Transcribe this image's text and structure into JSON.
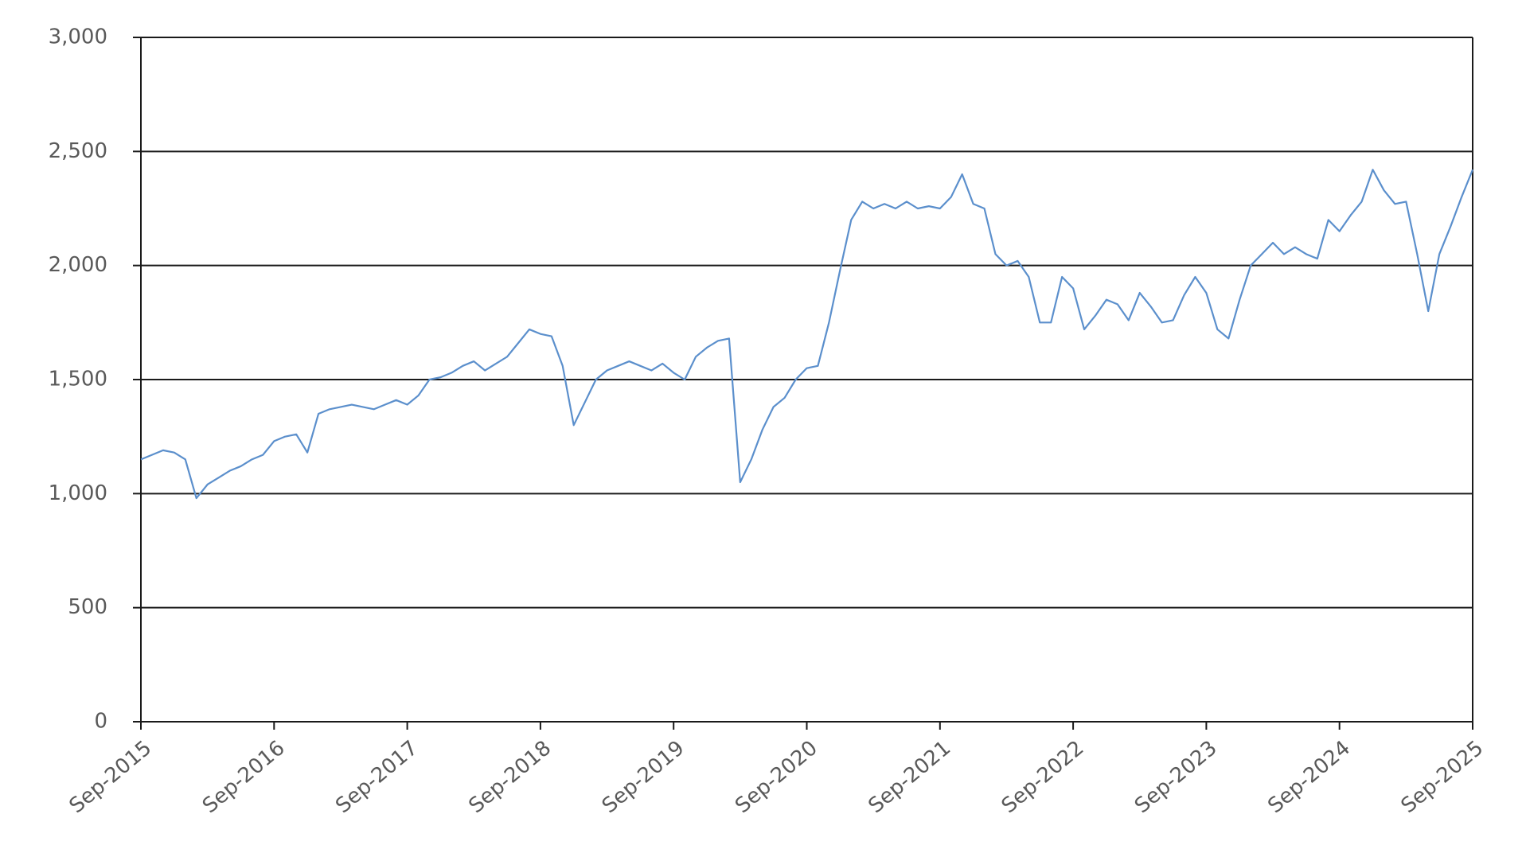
{
  "chart_data": {
    "type": "line",
    "x": [
      "2015-09",
      "2015-10",
      "2015-11",
      "2015-12",
      "2016-01",
      "2016-02",
      "2016-03",
      "2016-04",
      "2016-05",
      "2016-06",
      "2016-07",
      "2016-08",
      "2016-09",
      "2016-10",
      "2016-11",
      "2016-12",
      "2017-01",
      "2017-02",
      "2017-03",
      "2017-04",
      "2017-05",
      "2017-06",
      "2017-07",
      "2017-08",
      "2017-09",
      "2017-10",
      "2017-11",
      "2017-12",
      "2018-01",
      "2018-02",
      "2018-03",
      "2018-04",
      "2018-05",
      "2018-06",
      "2018-07",
      "2018-08",
      "2018-09",
      "2018-10",
      "2018-11",
      "2018-12",
      "2019-01",
      "2019-02",
      "2019-03",
      "2019-04",
      "2019-05",
      "2019-06",
      "2019-07",
      "2019-08",
      "2019-09",
      "2019-10",
      "2019-11",
      "2019-12",
      "2020-01",
      "2020-02",
      "2020-03",
      "2020-04",
      "2020-05",
      "2020-06",
      "2020-07",
      "2020-08",
      "2020-09",
      "2020-10",
      "2020-11",
      "2020-12",
      "2021-01",
      "2021-02",
      "2021-03",
      "2021-04",
      "2021-05",
      "2021-06",
      "2021-07",
      "2021-08",
      "2021-09",
      "2021-10",
      "2021-11",
      "2021-12",
      "2022-01",
      "2022-02",
      "2022-03",
      "2022-04",
      "2022-05",
      "2022-06",
      "2022-07",
      "2022-08",
      "2022-09",
      "2022-10",
      "2022-11",
      "2022-12",
      "2023-01",
      "2023-02",
      "2023-03",
      "2023-04",
      "2023-05",
      "2023-06",
      "2023-07",
      "2023-08",
      "2023-09",
      "2023-10",
      "2023-11",
      "2023-12",
      "2024-01",
      "2024-02",
      "2024-03",
      "2024-04",
      "2024-05",
      "2024-06",
      "2024-07",
      "2024-08",
      "2024-09",
      "2024-10",
      "2024-11",
      "2024-12",
      "2025-01",
      "2025-02",
      "2025-03",
      "2025-04",
      "2025-05",
      "2025-06",
      "2025-07",
      "2025-08",
      "2025-09"
    ],
    "series": [
      {
        "color": "#5b8fcc",
        "values": [
          1150,
          1170,
          1190,
          1180,
          1150,
          980,
          1040,
          1070,
          1100,
          1120,
          1150,
          1170,
          1230,
          1250,
          1260,
          1180,
          1350,
          1370,
          1380,
          1390,
          1380,
          1370,
          1390,
          1410,
          1390,
          1430,
          1500,
          1510,
          1530,
          1560,
          1580,
          1540,
          1570,
          1600,
          1660,
          1720,
          1700,
          1690,
          1560,
          1300,
          1400,
          1500,
          1540,
          1560,
          1580,
          1560,
          1540,
          1570,
          1530,
          1500,
          1600,
          1640,
          1670,
          1680,
          1050,
          1150,
          1280,
          1380,
          1420,
          1500,
          1550,
          1560,
          1750,
          1980,
          2200,
          2280,
          2250,
          2270,
          2250,
          2280,
          2250,
          2260,
          2250,
          2300,
          2400,
          2270,
          2250,
          2050,
          2000,
          2020,
          1950,
          1750,
          1750,
          1950,
          1900,
          1720,
          1780,
          1850,
          1830,
          1760,
          1880,
          1820,
          1750,
          1760,
          1870,
          1950,
          1880,
          1720,
          1680,
          1850,
          2000,
          2050,
          2100,
          2050,
          2080,
          2050,
          2030,
          2200,
          2150,
          2220,
          2280,
          2420,
          2330,
          2270,
          2280,
          2050,
          1800,
          2050,
          2170,
          2300,
          2420
        ]
      }
    ],
    "xlim": [
      "2015-09",
      "2025-09"
    ],
    "xticks": [
      {
        "value": "2015-09",
        "label": "Sep-2015"
      },
      {
        "value": "2016-09",
        "label": "Sep-2016"
      },
      {
        "value": "2017-09",
        "label": "Sep-2017"
      },
      {
        "value": "2018-09",
        "label": "Sep-2018"
      },
      {
        "value": "2019-09",
        "label": "Sep-2019"
      },
      {
        "value": "2020-09",
        "label": "Sep-2020"
      },
      {
        "value": "2021-09",
        "label": "Sep-2021"
      },
      {
        "value": "2022-09",
        "label": "Sep-2022"
      },
      {
        "value": "2023-09",
        "label": "Sep-2023"
      },
      {
        "value": "2024-09",
        "label": "Sep-2024"
      },
      {
        "value": "2025-09",
        "label": "Sep-2025"
      }
    ],
    "ylim": [
      0,
      3000
    ],
    "yticks": [
      0,
      500,
      {
        "value": 1000,
        "label": "1,000"
      },
      {
        "value": 1500,
        "label": "1,500"
      },
      {
        "value": 2000,
        "label": "2,000"
      },
      {
        "value": 2500,
        "label": "2,500"
      },
      {
        "value": 3000,
        "label": "3,000"
      }
    ],
    "grid": true
  }
}
